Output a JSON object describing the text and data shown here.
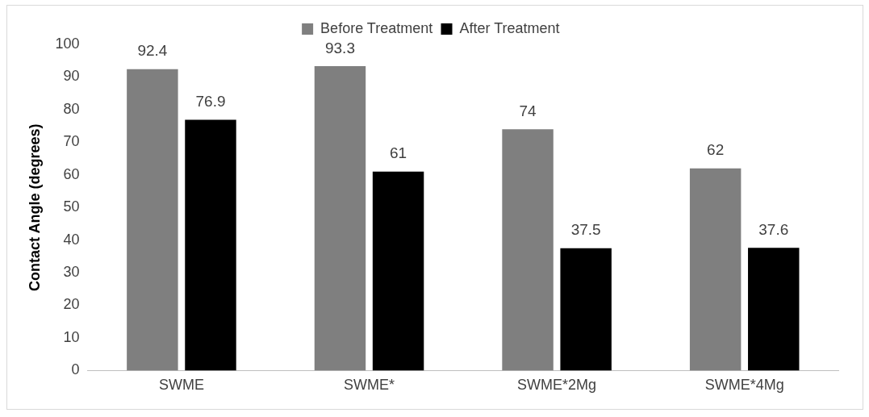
{
  "chart_data": {
    "type": "bar",
    "ylabel": "Contact Angle (degrees)",
    "categories": [
      "SWME",
      "SWME*",
      "SWME*2Mg",
      "SWME*4Mg"
    ],
    "series": [
      {
        "name": "Before Treatment",
        "color": "#7f7f7f",
        "values": [
          92.4,
          93.3,
          74,
          62
        ]
      },
      {
        "name": "After Treatment",
        "color": "#000000",
        "values": [
          76.9,
          61,
          37.5,
          37.6
        ]
      }
    ],
    "ylim": [
      0,
      100
    ],
    "yticks": [
      0,
      10,
      20,
      30,
      40,
      50,
      60,
      70,
      80,
      90,
      100
    ],
    "grid": false,
    "legend": "top",
    "data_labels": true
  }
}
